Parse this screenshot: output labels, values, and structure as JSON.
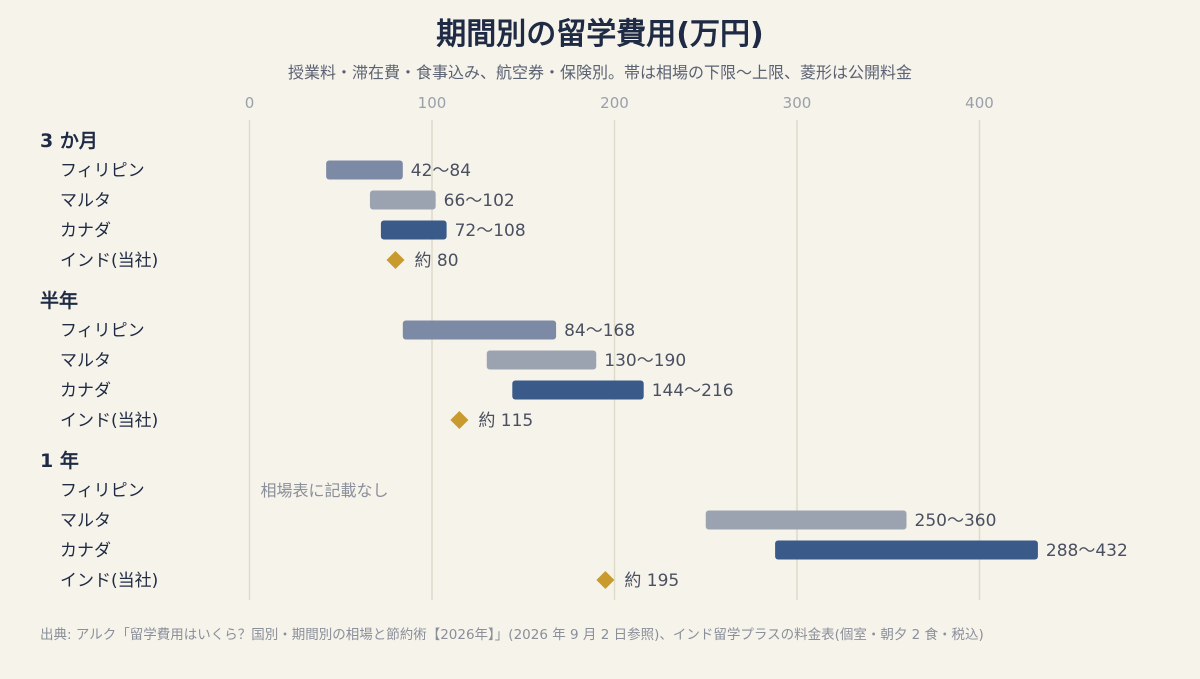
{
  "chart_data": {
    "type": "bar",
    "title": "期間別の留学費用(万円)",
    "subtitle": "授業料・滞在費・食事込み、航空券・保険別。帯は相場の下限〜上限、菱形は公開料金",
    "xlim": [
      0,
      450
    ],
    "ticks": [
      "0",
      "100",
      "200",
      "300",
      "400"
    ],
    "tick_values": [
      0,
      100,
      200,
      300,
      400
    ],
    "grid": "vertical",
    "colors": {
      "philippines": "#7d8aa6",
      "malta": "#9ca3b0",
      "canada": "#3a5a8a",
      "india": "#c99b2e"
    },
    "groups": [
      {
        "label": "3 か月",
        "rows": [
          {
            "label": "フィリピン",
            "kind": "range",
            "low": 42,
            "high": 84,
            "color_key": "philippines",
            "value_text": "42〜84"
          },
          {
            "label": "マルタ",
            "kind": "range",
            "low": 66,
            "high": 102,
            "color_key": "malta",
            "value_text": "66〜102"
          },
          {
            "label": "カナダ",
            "kind": "range",
            "low": 72,
            "high": 108,
            "color_key": "canada",
            "value_text": "72〜108"
          },
          {
            "label": "インド(当社)",
            "kind": "point",
            "value": 80,
            "color_key": "india",
            "value_text": "約 80"
          }
        ]
      },
      {
        "label": "半年",
        "rows": [
          {
            "label": "フィリピン",
            "kind": "range",
            "low": 84,
            "high": 168,
            "color_key": "philippines",
            "value_text": "84〜168"
          },
          {
            "label": "マルタ",
            "kind": "range",
            "low": 130,
            "high": 190,
            "color_key": "malta",
            "value_text": "130〜190"
          },
          {
            "label": "カナダ",
            "kind": "range",
            "low": 144,
            "high": 216,
            "color_key": "canada",
            "value_text": "144〜216"
          },
          {
            "label": "インド(当社)",
            "kind": "point",
            "value": 115,
            "color_key": "india",
            "value_text": "約 115"
          }
        ]
      },
      {
        "label": "1 年",
        "rows": [
          {
            "label": "フィリピン",
            "kind": "none",
            "value_text": "相場表に記載なし"
          },
          {
            "label": "マルタ",
            "kind": "range",
            "low": 250,
            "high": 360,
            "color_key": "malta",
            "value_text": "250〜360"
          },
          {
            "label": "カナダ",
            "kind": "range",
            "low": 288,
            "high": 432,
            "color_key": "canada",
            "value_text": "288〜432"
          },
          {
            "label": "インド(当社)",
            "kind": "point",
            "value": 195,
            "color_key": "india",
            "value_text": "約 195"
          }
        ]
      }
    ],
    "source": "出典: アルク「留学費用はいくら？国別・期間別の相場と節約術【2026年】」(2026 年 9 月 2 日参照)、インド留学プラスの料金表(個室・朝夕 2 食・税込)"
  }
}
